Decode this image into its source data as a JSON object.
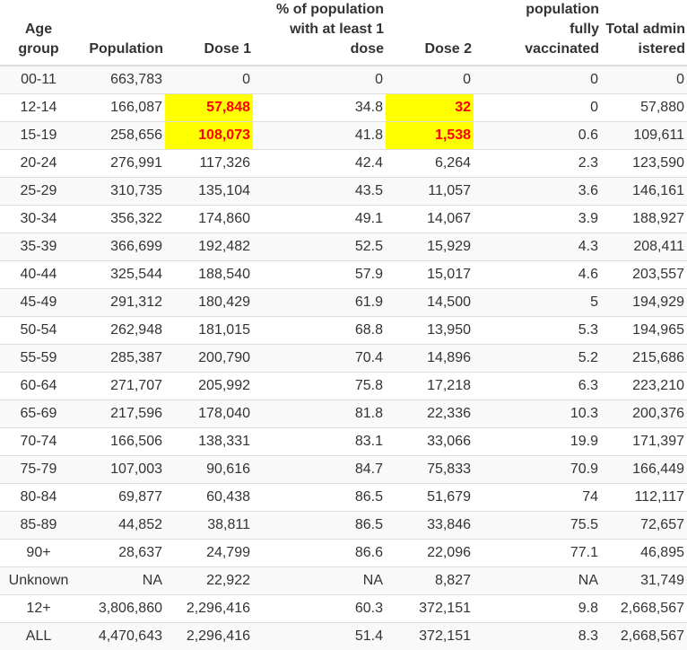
{
  "headers": {
    "age": "Age group",
    "population": "Population",
    "dose1": "Dose 1",
    "pct_one": "% of population with at least 1 dose",
    "dose2": "Dose 2",
    "pct_full": "population fully vaccinated",
    "total": "Total administered"
  },
  "colors": {
    "highlight_bg": "#ffff00",
    "highlight_text": "#ff0000"
  },
  "rows": [
    {
      "age": "00-11",
      "population": "663,783",
      "dose1": "0",
      "pct_one": "0",
      "dose2": "0",
      "pct_full": "0",
      "total": "0"
    },
    {
      "age": "12-14",
      "population": "166,087",
      "dose1": "57,848",
      "pct_one": "34.8",
      "dose2": "32",
      "pct_full": "0",
      "total": "57,880"
    },
    {
      "age": "15-19",
      "population": "258,656",
      "dose1": "108,073",
      "pct_one": "41.8",
      "dose2": "1,538",
      "pct_full": "0.6",
      "total": "109,611"
    },
    {
      "age": "20-24",
      "population": "276,991",
      "dose1": "117,326",
      "pct_one": "42.4",
      "dose2": "6,264",
      "pct_full": "2.3",
      "total": "123,590"
    },
    {
      "age": "25-29",
      "population": "310,735",
      "dose1": "135,104",
      "pct_one": "43.5",
      "dose2": "11,057",
      "pct_full": "3.6",
      "total": "146,161"
    },
    {
      "age": "30-34",
      "population": "356,322",
      "dose1": "174,860",
      "pct_one": "49.1",
      "dose2": "14,067",
      "pct_full": "3.9",
      "total": "188,927"
    },
    {
      "age": "35-39",
      "population": "366,699",
      "dose1": "192,482",
      "pct_one": "52.5",
      "dose2": "15,929",
      "pct_full": "4.3",
      "total": "208,411"
    },
    {
      "age": "40-44",
      "population": "325,544",
      "dose1": "188,540",
      "pct_one": "57.9",
      "dose2": "15,017",
      "pct_full": "4.6",
      "total": "203,557"
    },
    {
      "age": "45-49",
      "population": "291,312",
      "dose1": "180,429",
      "pct_one": "61.9",
      "dose2": "14,500",
      "pct_full": "5",
      "total": "194,929"
    },
    {
      "age": "50-54",
      "population": "262,948",
      "dose1": "181,015",
      "pct_one": "68.8",
      "dose2": "13,950",
      "pct_full": "5.3",
      "total": "194,965"
    },
    {
      "age": "55-59",
      "population": "285,387",
      "dose1": "200,790",
      "pct_one": "70.4",
      "dose2": "14,896",
      "pct_full": "5.2",
      "total": "215,686"
    },
    {
      "age": "60-64",
      "population": "271,707",
      "dose1": "205,992",
      "pct_one": "75.8",
      "dose2": "17,218",
      "pct_full": "6.3",
      "total": "223,210"
    },
    {
      "age": "65-69",
      "population": "217,596",
      "dose1": "178,040",
      "pct_one": "81.8",
      "dose2": "22,336",
      "pct_full": "10.3",
      "total": "200,376"
    },
    {
      "age": "70-74",
      "population": "166,506",
      "dose1": "138,331",
      "pct_one": "83.1",
      "dose2": "33,066",
      "pct_full": "19.9",
      "total": "171,397"
    },
    {
      "age": "75-79",
      "population": "107,003",
      "dose1": "90,616",
      "pct_one": "84.7",
      "dose2": "75,833",
      "pct_full": "70.9",
      "total": "166,449"
    },
    {
      "age": "80-84",
      "population": "69,877",
      "dose1": "60,438",
      "pct_one": "86.5",
      "dose2": "51,679",
      "pct_full": "74",
      "total": "112,117"
    },
    {
      "age": "85-89",
      "population": "44,852",
      "dose1": "38,811",
      "pct_one": "86.5",
      "dose2": "33,846",
      "pct_full": "75.5",
      "total": "72,657"
    },
    {
      "age": "90+",
      "population": "28,637",
      "dose1": "24,799",
      "pct_one": "86.6",
      "dose2": "22,096",
      "pct_full": "77.1",
      "total": "46,895"
    },
    {
      "age": "Unknown",
      "population": "NA",
      "dose1": "22,922",
      "pct_one": "NA",
      "dose2": "8,827",
      "pct_full": "NA",
      "total": "31,749"
    },
    {
      "age": "12+",
      "population": "3,806,860",
      "dose1": "2,296,416",
      "pct_one": "60.3",
      "dose2": "372,151",
      "pct_full": "9.8",
      "total": "2,668,567"
    },
    {
      "age": "ALL",
      "population": "4,470,643",
      "dose1": "2,296,416",
      "pct_one": "51.4",
      "dose2": "372,151",
      "pct_full": "8.3",
      "total": "2,668,567"
    }
  ],
  "highlights": [
    {
      "row": 1,
      "col": "dose1"
    },
    {
      "row": 1,
      "col": "dose2"
    },
    {
      "row": 2,
      "col": "dose1"
    },
    {
      "row": 2,
      "col": "dose2"
    }
  ]
}
